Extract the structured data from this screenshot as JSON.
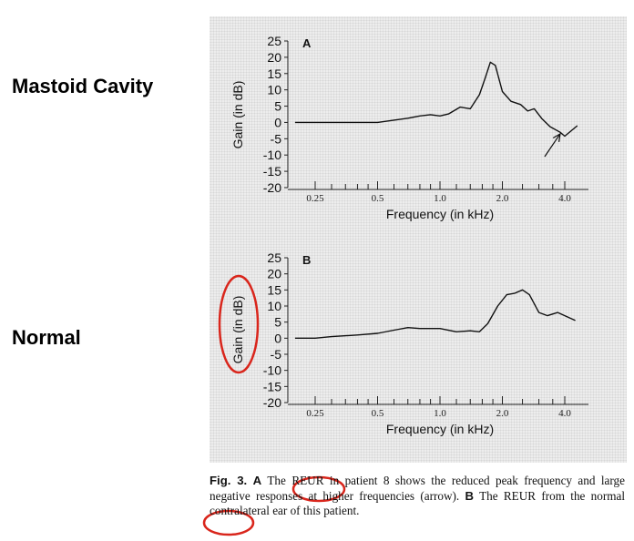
{
  "annotations": {
    "side_label_a": "Mastoid Cavity",
    "side_label_b": "Normal",
    "highlight_color": "#d9261c"
  },
  "caption": {
    "fig_label": "Fig. 3.",
    "part_a_letter": "A",
    "text_1": "The",
    "reur_1": "REUR",
    "text_2": "in patient 8 shows the reduced peak frequency and large negative responses at higher frequencies (arrow).",
    "part_b_letter": "B",
    "text_3": "The",
    "reur_2": "REUR",
    "text_4": "from the normal contralateral ear of this patient."
  },
  "chart_data": [
    {
      "type": "line",
      "panel_letter": "A",
      "ylabel": "Gain (in dB)",
      "xlabel": "Frequency (in kHz)",
      "ylim": [
        -20,
        25
      ],
      "yticks": [
        25,
        20,
        15,
        10,
        5,
        0,
        -5,
        -10,
        -15,
        -20
      ],
      "xlim": [
        0.2,
        5.0
      ],
      "x_scale": "log",
      "xtick_labels": [
        {
          "value": 0.25,
          "label": "0.25"
        },
        {
          "value": 0.5,
          "label": "0.5"
        },
        {
          "value": 1.0,
          "label": "1.0"
        },
        {
          "value": 2.0,
          "label": "2.0"
        },
        {
          "value": 4.0,
          "label": "4.0"
        }
      ],
      "x_minor_ticks": [
        0.3,
        0.35,
        0.4,
        0.45,
        0.6,
        0.7,
        0.8,
        0.9,
        1.2,
        1.4,
        1.6,
        1.8,
        2.5,
        3.0,
        3.5
      ],
      "series": [
        {
          "x": [
            0.2,
            0.25,
            0.3,
            0.4,
            0.5,
            0.6,
            0.7,
            0.8,
            0.9,
            1.0,
            1.1,
            1.25,
            1.4,
            1.55,
            1.65,
            1.75,
            1.85,
            2.0,
            2.2,
            2.45,
            2.65,
            2.85,
            3.1,
            3.4,
            3.8,
            4.0,
            4.6
          ],
          "y": [
            0,
            0,
            0,
            0,
            0,
            0.7,
            1.3,
            2,
            2.4,
            2,
            2.6,
            4.7,
            4.2,
            8.5,
            13.5,
            18.5,
            17.5,
            9.5,
            6.5,
            5.5,
            3.5,
            4.2,
            1.2,
            -1.3,
            -3,
            -4.2,
            -1
          ]
        }
      ],
      "annotations": [
        {
          "type": "arrow",
          "from": [
            3.2,
            -10.5
          ],
          "to": [
            3.8,
            -3.5
          ]
        }
      ]
    },
    {
      "type": "line",
      "panel_letter": "B",
      "ylabel": "Gain (in dB)",
      "xlabel": "Frequency  (in kHz)",
      "ylim": [
        -20,
        25
      ],
      "yticks": [
        25,
        20,
        15,
        10,
        5,
        0,
        -5,
        -10,
        -15,
        -20
      ],
      "xlim": [
        0.2,
        5.0
      ],
      "x_scale": "log",
      "xtick_labels": [
        {
          "value": 0.25,
          "label": "0.25"
        },
        {
          "value": 0.5,
          "label": "0.5"
        },
        {
          "value": 1.0,
          "label": "1.0"
        },
        {
          "value": 2.0,
          "label": "2.0"
        },
        {
          "value": 4.0,
          "label": "4.0"
        }
      ],
      "x_minor_ticks": [
        0.3,
        0.35,
        0.4,
        0.45,
        0.6,
        0.7,
        0.8,
        0.9,
        1.2,
        1.4,
        1.6,
        1.8,
        2.5,
        3.0,
        3.5
      ],
      "series": [
        {
          "x": [
            0.2,
            0.25,
            0.3,
            0.4,
            0.5,
            0.6,
            0.7,
            0.8,
            0.9,
            1.0,
            1.2,
            1.4,
            1.55,
            1.7,
            1.9,
            2.1,
            2.3,
            2.5,
            2.7,
            3.0,
            3.3,
            3.7,
            4.0,
            4.5
          ],
          "y": [
            0,
            0,
            0.5,
            1,
            1.5,
            2.5,
            3.3,
            3,
            3,
            3,
            2,
            2.3,
            2,
            4.5,
            10,
            13.5,
            14,
            15,
            13.5,
            8,
            7,
            8,
            7,
            5.5
          ]
        }
      ]
    }
  ]
}
